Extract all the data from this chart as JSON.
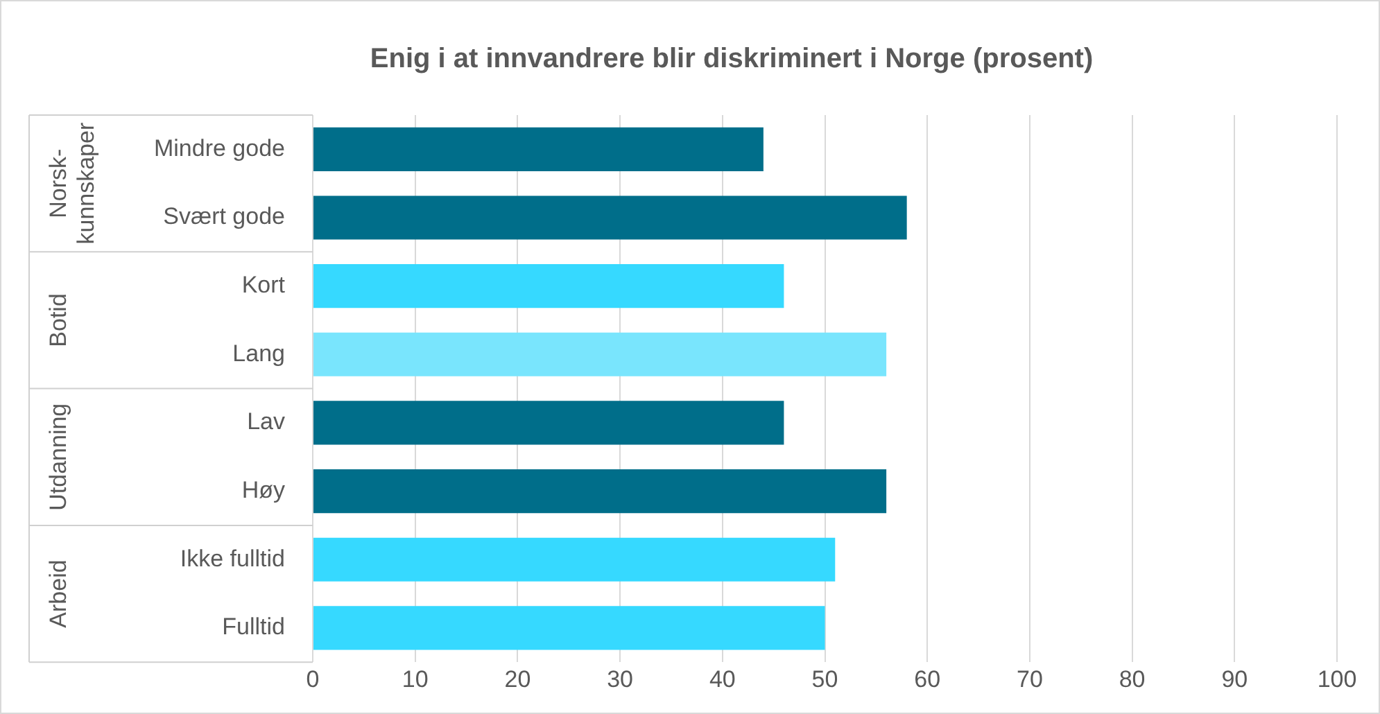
{
  "chart_data": {
    "type": "bar",
    "orientation": "horizontal",
    "title": "Enig i at innvandrere blir diskriminert i Norge (prosent)",
    "categories": [
      "Mindre gode",
      "Svært gode",
      "Kort",
      "Lang",
      "Lav",
      "Høy",
      "Ikke fulltid",
      "Fulltid"
    ],
    "values": [
      44,
      58,
      46,
      56,
      46,
      56,
      51,
      50
    ],
    "colors": [
      "#006e8a",
      "#006e8a",
      "#36d9ff",
      "#79e5fd",
      "#006e8a",
      "#006e8a",
      "#36d9ff",
      "#36d9ff"
    ],
    "annotations": [
      "Norsk-kunnskaper",
      "Botid",
      "Utdanning",
      "Arbeid"
    ],
    "xlim": [
      0,
      100
    ],
    "xticks": [
      0,
      10,
      20,
      30,
      40,
      50,
      60,
      70,
      80,
      90,
      100
    ],
    "grid": "x",
    "legend": false
  }
}
